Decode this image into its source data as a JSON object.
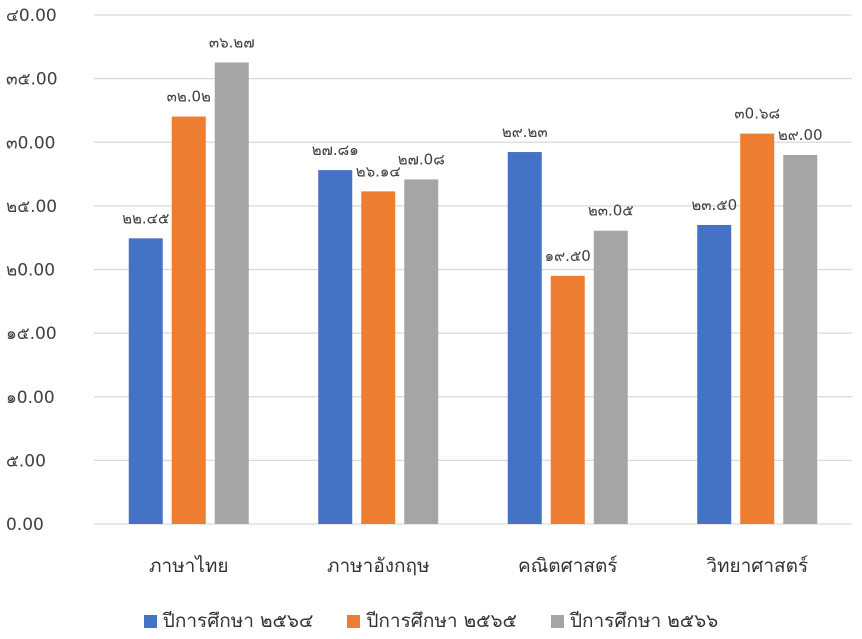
{
  "chart_data": {
    "type": "bar",
    "title": "",
    "xlabel": "",
    "ylabel": "",
    "ylim": [
      0,
      40
    ],
    "y_ticks": [
      {
        "value": 0,
        "label": "0.00"
      },
      {
        "value": 5,
        "label": "๕.00"
      },
      {
        "value": 10,
        "label": "๑0.00"
      },
      {
        "value": 15,
        "label": "๑๕.00"
      },
      {
        "value": 20,
        "label": "๒0.00"
      },
      {
        "value": 25,
        "label": "๒๕.00"
      },
      {
        "value": 30,
        "label": "๓0.00"
      },
      {
        "value": 35,
        "label": "๓๕.00"
      },
      {
        "value": 40,
        "label": "๔0.00"
      }
    ],
    "grid": true,
    "legend_position": "bottom",
    "categories": [
      "ภาษาไทย",
      "ภาษาอังกฤษ",
      "คณิตศาสตร์",
      "วิทยาศาสตร์"
    ],
    "series": [
      {
        "name": "ปีการศึกษา ๒๕๖๔",
        "color": "#4472C4",
        "values": [
          22.45,
          27.81,
          29.23,
          23.5
        ],
        "labels": [
          "๒๒.๔๕",
          "๒๗.๘๑",
          "๒๙.๒๓",
          "๒๓.๕0"
        ]
      },
      {
        "name": "ปีการศึกษา ๒๕๖๕",
        "color": "#ED7D31",
        "values": [
          32.02,
          26.14,
          19.5,
          30.68
        ],
        "labels": [
          "๓๒.0๒",
          "๒๖.๑๔",
          "๑๙.๕0",
          "๓0.๖๘"
        ]
      },
      {
        "name": "ปีการศึกษา ๒๕๖๖",
        "color": "#A5A5A5",
        "values": [
          36.27,
          27.08,
          23.05,
          29.0
        ],
        "labels": [
          "๓๖.๒๗",
          "๒๗.0๘",
          "๒๓.0๕",
          "๒๙.00"
        ]
      }
    ]
  }
}
